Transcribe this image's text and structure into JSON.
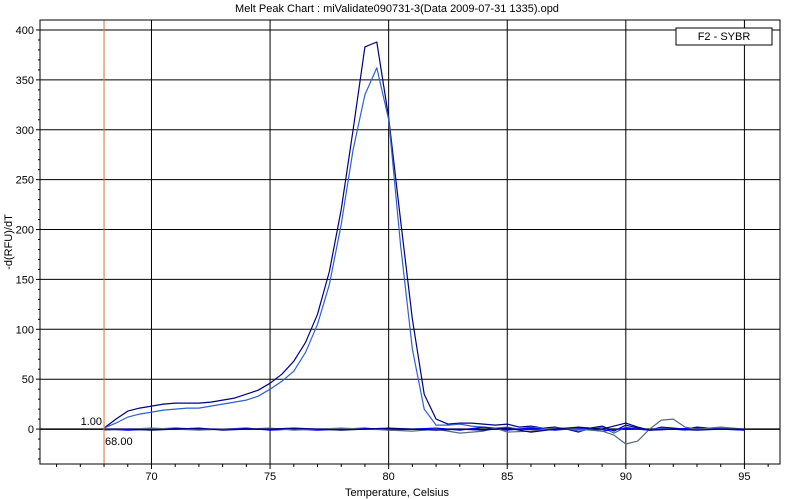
{
  "chart_data": {
    "type": "line",
    "title": "Melt Peak Chart : miValidate090731-3(Data 2009-07-31 1335).opd",
    "xlabel": "Temperature, Celsius",
    "ylabel": "-d(RFU)/dT",
    "xlim": [
      65.3,
      96.5
    ],
    "ylim": [
      -35,
      410
    ],
    "xticks": [
      70,
      75,
      80,
      85,
      90,
      95
    ],
    "yticks": [
      0,
      50,
      100,
      150,
      200,
      250,
      300,
      350,
      400
    ],
    "grid": true,
    "legend_position": "top-right",
    "legend": [
      "F2 - SYBR"
    ],
    "marker": {
      "x": 68.0,
      "x_label": "68.00",
      "y_label": "1.00",
      "color": "#e07040"
    },
    "colors": {
      "series_dark": "#000080",
      "series_mid": "#2f5fd0",
      "series_flat": "#0000ff",
      "series_grey": "#5a6a7a"
    },
    "series": [
      {
        "color": "#000080",
        "points": [
          [
            68,
            1
          ],
          [
            68.5,
            10
          ],
          [
            69,
            18
          ],
          [
            69.5,
            21
          ],
          [
            70,
            23
          ],
          [
            70.5,
            25
          ],
          [
            71,
            26
          ],
          [
            71.5,
            26
          ],
          [
            72,
            26
          ],
          [
            72.5,
            27
          ],
          [
            73,
            29
          ],
          [
            73.5,
            31
          ],
          [
            74,
            35
          ],
          [
            74.5,
            39
          ],
          [
            75,
            46
          ],
          [
            75.5,
            55
          ],
          [
            76,
            68
          ],
          [
            76.5,
            87
          ],
          [
            77,
            115
          ],
          [
            77.5,
            158
          ],
          [
            78,
            220
          ],
          [
            78.5,
            300
          ],
          [
            79,
            383
          ],
          [
            79.5,
            388
          ],
          [
            80,
            312
          ],
          [
            80.5,
            210
          ],
          [
            81,
            110
          ],
          [
            81.5,
            35
          ],
          [
            82,
            10
          ],
          [
            82.5,
            5
          ],
          [
            83,
            6
          ],
          [
            83.5,
            6
          ],
          [
            84,
            5
          ],
          [
            84.5,
            4
          ],
          [
            85,
            5
          ],
          [
            85.5,
            2
          ],
          [
            86,
            3
          ],
          [
            86.5,
            1
          ],
          [
            87,
            2
          ],
          [
            87.5,
            0
          ],
          [
            88,
            -3
          ],
          [
            88.5,
            1
          ],
          [
            89,
            3
          ],
          [
            89.5,
            -2
          ],
          [
            90,
            4
          ],
          [
            90.5,
            1
          ],
          [
            91,
            -1
          ],
          [
            91.5,
            2
          ],
          [
            92,
            1
          ],
          [
            92.5,
            0
          ],
          [
            93,
            2
          ],
          [
            93.5,
            1
          ],
          [
            94,
            1
          ],
          [
            94.5,
            0
          ],
          [
            95,
            0
          ]
        ]
      },
      {
        "color": "#2f5fd0",
        "points": [
          [
            68,
            1
          ],
          [
            68.5,
            6
          ],
          [
            69,
            12
          ],
          [
            69.5,
            15
          ],
          [
            70,
            17
          ],
          [
            70.5,
            19
          ],
          [
            71,
            20
          ],
          [
            71.5,
            21
          ],
          [
            72,
            21
          ],
          [
            72.5,
            23
          ],
          [
            73,
            25
          ],
          [
            73.5,
            27
          ],
          [
            74,
            29
          ],
          [
            74.5,
            33
          ],
          [
            75,
            40
          ],
          [
            75.5,
            48
          ],
          [
            76,
            58
          ],
          [
            76.5,
            77
          ],
          [
            77,
            105
          ],
          [
            77.5,
            145
          ],
          [
            78,
            205
          ],
          [
            78.5,
            280
          ],
          [
            79,
            335
          ],
          [
            79.5,
            362
          ],
          [
            80,
            310
          ],
          [
            80.5,
            185
          ],
          [
            81,
            80
          ],
          [
            81.5,
            20
          ],
          [
            82,
            4
          ],
          [
            82.5,
            4
          ],
          [
            83,
            5
          ],
          [
            83.5,
            3
          ],
          [
            84,
            2
          ],
          [
            84.5,
            1
          ],
          [
            85,
            2
          ],
          [
            85.5,
            0
          ],
          [
            86,
            2
          ],
          [
            86.5,
            1
          ],
          [
            87,
            0
          ],
          [
            87.5,
            1
          ],
          [
            88,
            -2
          ],
          [
            88.5,
            0
          ],
          [
            89,
            2
          ],
          [
            89.5,
            -4
          ],
          [
            90,
            2
          ],
          [
            90.5,
            0
          ],
          [
            91,
            -1
          ],
          [
            91.5,
            1
          ],
          [
            92,
            0
          ],
          [
            92.5,
            -1
          ],
          [
            93,
            1
          ],
          [
            93.5,
            0
          ],
          [
            94,
            1
          ],
          [
            94.5,
            0
          ],
          [
            95,
            -1
          ]
        ]
      },
      {
        "color": "#0000ff",
        "points": [
          [
            68,
            0
          ],
          [
            69,
            -1
          ],
          [
            70,
            0
          ],
          [
            71,
            1
          ],
          [
            72,
            0
          ],
          [
            73,
            0
          ],
          [
            74,
            1
          ],
          [
            75,
            -1
          ],
          [
            76,
            0
          ],
          [
            77,
            -1
          ],
          [
            78,
            0
          ],
          [
            79,
            1
          ],
          [
            80,
            -1
          ],
          [
            81,
            0
          ],
          [
            82,
            1
          ],
          [
            83,
            -1
          ],
          [
            84,
            2
          ],
          [
            85,
            -1
          ],
          [
            86,
            1
          ],
          [
            87,
            -1
          ],
          [
            88,
            1
          ],
          [
            89,
            -2
          ],
          [
            90,
            1
          ],
          [
            91,
            -1
          ],
          [
            92,
            0
          ],
          [
            93,
            1
          ],
          [
            94,
            0
          ],
          [
            95,
            -1
          ]
        ]
      },
      {
        "color": "#5a6a7a",
        "points": [
          [
            68,
            -1
          ],
          [
            69,
            0
          ],
          [
            70,
            1
          ],
          [
            71,
            0
          ],
          [
            72,
            -1
          ],
          [
            73,
            0
          ],
          [
            74,
            0
          ],
          [
            75,
            1
          ],
          [
            76,
            -1
          ],
          [
            77,
            0
          ],
          [
            78,
            1
          ],
          [
            79,
            0
          ],
          [
            80,
            -1
          ],
          [
            81,
            -2
          ],
          [
            82,
            0
          ],
          [
            83,
            -4
          ],
          [
            84,
            -2
          ],
          [
            84.5,
            1
          ],
          [
            85,
            -3
          ],
          [
            86,
            -2
          ],
          [
            87,
            1
          ],
          [
            88,
            0
          ],
          [
            89,
            -2
          ],
          [
            89.5,
            -6
          ],
          [
            90,
            -15
          ],
          [
            90.5,
            -12
          ],
          [
            91,
            0
          ],
          [
            91.5,
            9
          ],
          [
            92,
            10
          ],
          [
            92.5,
            2
          ],
          [
            93,
            0
          ],
          [
            94,
            2
          ],
          [
            95,
            0
          ]
        ]
      },
      {
        "color": "#000080",
        "points": [
          [
            68,
            0
          ],
          [
            69,
            0
          ],
          [
            70,
            -1
          ],
          [
            71,
            0
          ],
          [
            72,
            1
          ],
          [
            73,
            -1
          ],
          [
            74,
            0
          ],
          [
            75,
            0
          ],
          [
            76,
            1
          ],
          [
            77,
            0
          ],
          [
            78,
            -1
          ],
          [
            79,
            0
          ],
          [
            80,
            1
          ],
          [
            81,
            0
          ],
          [
            82,
            -1
          ],
          [
            83,
            0
          ],
          [
            84,
            -1
          ],
          [
            85,
            1
          ],
          [
            86,
            -3
          ],
          [
            87,
            0
          ],
          [
            88,
            2
          ],
          [
            89,
            0
          ],
          [
            90,
            6
          ],
          [
            90.5,
            2
          ],
          [
            91,
            -1
          ],
          [
            92,
            0
          ],
          [
            93,
            -1
          ],
          [
            94,
            0
          ],
          [
            95,
            0
          ]
        ]
      }
    ]
  }
}
